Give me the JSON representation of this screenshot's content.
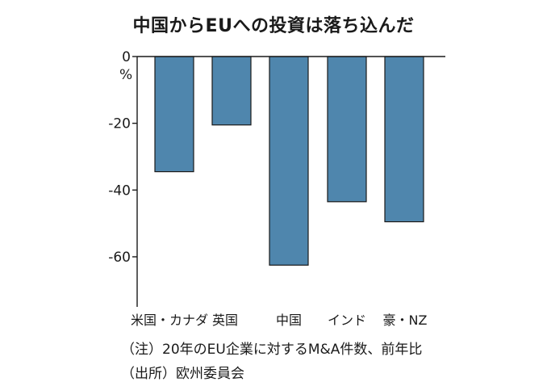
{
  "chart_data": {
    "type": "bar",
    "title": "中国からEUへの投資は落ち込んだ",
    "unit_label": "%",
    "categories": [
      "米国・カナダ",
      "英国",
      "中国",
      "インド",
      "豪・NZ"
    ],
    "values": [
      -34.5,
      -20.5,
      -62.5,
      -43.5,
      -49.5
    ],
    "ylim": [
      -75,
      0
    ],
    "yticks": [
      0,
      -20,
      -40,
      -60
    ],
    "ytick_labels": [
      "0",
      "-20",
      "-40",
      "-60"
    ],
    "bar_color": "#4f86ad",
    "grid": false
  },
  "notes": {
    "note": "（注）20年のEU企業に対するM&A件数、前年比",
    "source": "（出所）欧州委員会"
  }
}
